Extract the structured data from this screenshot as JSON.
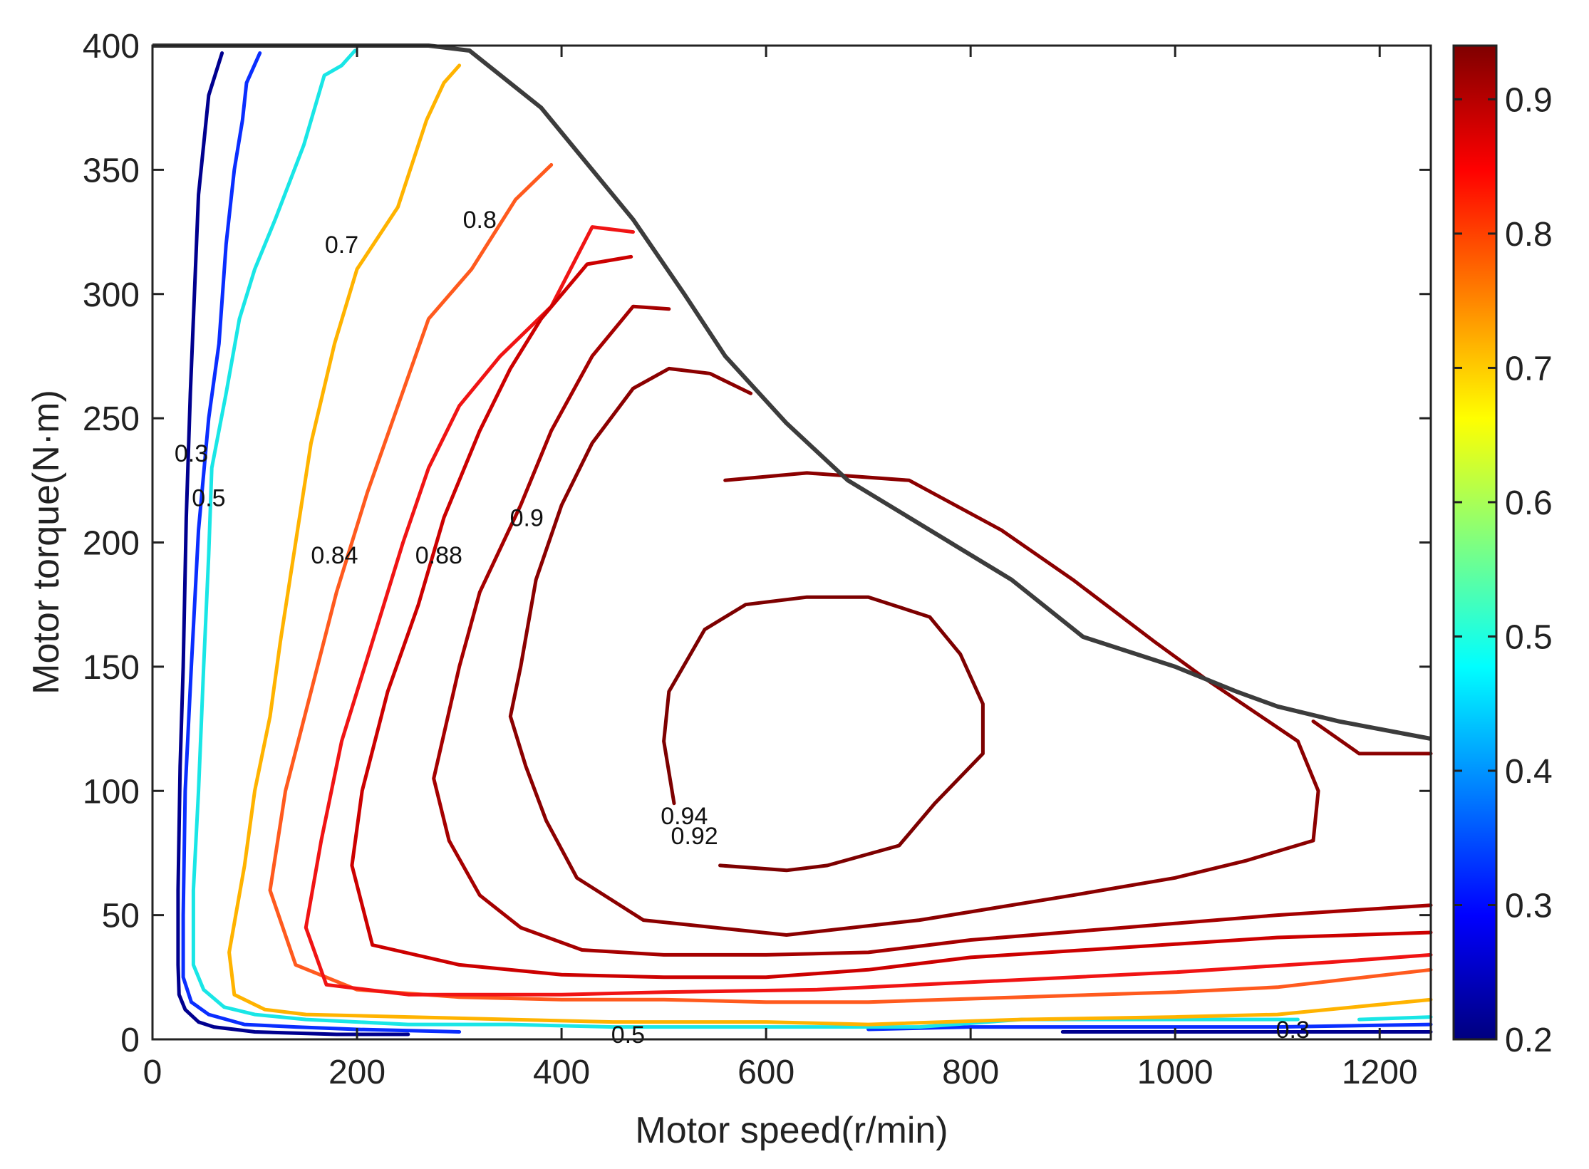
{
  "chart_data": {
    "type": "contour",
    "title": "",
    "xlabel": "Motor speed(r/min)",
    "ylabel": "Motor torque(N·m)",
    "xlim": [
      0,
      1250
    ],
    "ylim": [
      0,
      400
    ],
    "xticks": [
      0,
      200,
      400,
      600,
      800,
      1000,
      1200
    ],
    "yticks": [
      0,
      50,
      100,
      150,
      200,
      250,
      300,
      350,
      400
    ],
    "grid": false,
    "colorbar": {
      "colormap": "jet",
      "range": [
        0.2,
        0.94
      ],
      "ticks": [
        0.2,
        0.3,
        0.4,
        0.5,
        0.6,
        0.7,
        0.8,
        0.9
      ],
      "stops": [
        {
          "v": 0.0,
          "color": "#00007f"
        },
        {
          "v": 0.125,
          "color": "#0000ff"
        },
        {
          "v": 0.375,
          "color": "#00ffff"
        },
        {
          "v": 0.625,
          "color": "#ffff00"
        },
        {
          "v": 0.875,
          "color": "#ff0000"
        },
        {
          "v": 1.0,
          "color": "#7f0000"
        }
      ]
    },
    "boundary": {
      "name": "Max torque curve",
      "color": "#3c3c3c",
      "points": [
        [
          0,
          400
        ],
        [
          270,
          400
        ],
        [
          310,
          398
        ],
        [
          380,
          375
        ],
        [
          470,
          330
        ],
        [
          520,
          300
        ],
        [
          560,
          275
        ],
        [
          620,
          248
        ],
        [
          680,
          225
        ],
        [
          780,
          200
        ],
        [
          840,
          185
        ],
        [
          910,
          162
        ],
        [
          1000,
          150
        ],
        [
          1060,
          140
        ],
        [
          1100,
          134
        ],
        [
          1160,
          128
        ],
        [
          1250,
          121
        ]
      ]
    },
    "series": [
      {
        "name": "0.3 left",
        "level": 0.3,
        "color": "#00008f",
        "label": "0.3",
        "label_at": [
          38,
          236
        ],
        "points": [
          [
            68,
            397
          ],
          [
            55,
            380
          ],
          [
            45,
            340
          ],
          [
            40,
            290
          ],
          [
            37,
            260
          ],
          [
            33,
            210
          ],
          [
            30,
            150
          ],
          [
            27,
            110
          ],
          [
            25,
            60
          ],
          [
            25,
            30
          ],
          [
            26,
            18
          ],
          [
            32,
            12
          ],
          [
            45,
            7
          ],
          [
            60,
            5
          ],
          [
            80,
            4
          ],
          [
            100,
            3
          ],
          [
            180,
            2
          ],
          [
            250,
            2
          ]
        ]
      },
      {
        "name": "0.3 bottom right",
        "level": 0.3,
        "color": "#00008f",
        "label": "0.3",
        "label_at": [
          1115,
          4
        ],
        "points": [
          [
            890,
            3
          ],
          [
            1000,
            3
          ],
          [
            1100,
            3
          ],
          [
            1250,
            3
          ]
        ]
      },
      {
        "name": "0.5 left (blue)",
        "level": 0.5,
        "color": "#0a2eff",
        "points": [
          [
            105,
            397
          ],
          [
            92,
            385
          ],
          [
            88,
            370
          ],
          [
            80,
            350
          ],
          [
            72,
            320
          ],
          [
            65,
            280
          ],
          [
            55,
            250
          ],
          [
            45,
            205
          ],
          [
            38,
            150
          ],
          [
            32,
            100
          ],
          [
            30,
            50
          ],
          [
            30,
            25
          ],
          [
            38,
            15
          ],
          [
            55,
            10
          ],
          [
            90,
            6
          ],
          [
            140,
            5
          ],
          [
            200,
            4
          ],
          [
            300,
            3
          ]
        ]
      },
      {
        "name": "0.5 bottom right (blue)",
        "level": 0.5,
        "color": "#0a2eff",
        "points": [
          [
            700,
            4
          ],
          [
            800,
            5
          ],
          [
            900,
            5
          ],
          [
            1000,
            5
          ],
          [
            1100,
            5
          ],
          [
            1250,
            6
          ]
        ]
      },
      {
        "name": "0.5 left (cyan)",
        "level": 0.5,
        "color": "#19e6e6",
        "label": "0.5",
        "label_at": [
          55,
          218
        ],
        "points": [
          [
            198,
            398
          ],
          [
            185,
            392
          ],
          [
            168,
            388
          ],
          [
            148,
            360
          ],
          [
            120,
            330
          ],
          [
            100,
            310
          ],
          [
            85,
            290
          ],
          [
            72,
            260
          ],
          [
            58,
            230
          ],
          [
            55,
            195
          ],
          [
            50,
            150
          ],
          [
            45,
            100
          ],
          [
            40,
            60
          ],
          [
            40,
            30
          ],
          [
            50,
            20
          ],
          [
            70,
            13
          ],
          [
            100,
            10
          ],
          [
            150,
            8
          ],
          [
            250,
            6
          ],
          [
            350,
            6
          ],
          [
            450,
            5
          ],
          [
            600,
            5
          ],
          [
            750,
            5
          ],
          [
            850,
            8
          ],
          [
            950,
            8
          ],
          [
            1050,
            8
          ],
          [
            1120,
            8
          ]
        ]
      },
      {
        "name": "0.5 bottom right (cyan)",
        "level": 0.5,
        "color": "#19e6e6",
        "label": "0.5",
        "label_at": [
          465,
          2
        ],
        "points": [
          [
            1180,
            8
          ],
          [
            1250,
            9
          ]
        ]
      },
      {
        "name": "0.7",
        "level": 0.7,
        "color": "#ffb300",
        "label": "0.7",
        "label_at": [
          185,
          320
        ],
        "points": [
          [
            300,
            392
          ],
          [
            285,
            385
          ],
          [
            268,
            370
          ],
          [
            240,
            335
          ],
          [
            200,
            310
          ],
          [
            178,
            280
          ],
          [
            155,
            240
          ],
          [
            140,
            200
          ],
          [
            125,
            160
          ],
          [
            115,
            130
          ],
          [
            100,
            100
          ],
          [
            90,
            70
          ],
          [
            75,
            35
          ],
          [
            80,
            18
          ],
          [
            110,
            12
          ],
          [
            150,
            10
          ],
          [
            250,
            9
          ],
          [
            350,
            8
          ],
          [
            450,
            7
          ],
          [
            600,
            7
          ],
          [
            700,
            6
          ],
          [
            850,
            8
          ],
          [
            1000,
            9
          ],
          [
            1100,
            10
          ],
          [
            1250,
            16
          ]
        ]
      },
      {
        "name": "0.8",
        "level": 0.8,
        "color": "#ff5a1e",
        "label": "0.8",
        "label_at": [
          320,
          330
        ],
        "points": [
          [
            390,
            352
          ],
          [
            355,
            338
          ],
          [
            312,
            310
          ],
          [
            270,
            290
          ],
          [
            240,
            255
          ],
          [
            210,
            220
          ],
          [
            180,
            180
          ],
          [
            155,
            140
          ],
          [
            130,
            100
          ],
          [
            115,
            60
          ],
          [
            140,
            30
          ],
          [
            200,
            20
          ],
          [
            300,
            17
          ],
          [
            400,
            16
          ],
          [
            500,
            16
          ],
          [
            600,
            15
          ],
          [
            700,
            15
          ],
          [
            850,
            17
          ],
          [
            1000,
            19
          ],
          [
            1100,
            21
          ],
          [
            1250,
            28
          ]
        ]
      },
      {
        "name": "0.84",
        "level": 0.84,
        "color": "#f01414",
        "label": "0.84",
        "label_at": [
          178,
          195
        ],
        "points": [
          [
            470,
            325
          ],
          [
            430,
            327
          ],
          [
            390,
            295
          ],
          [
            340,
            275
          ],
          [
            300,
            255
          ],
          [
            270,
            230
          ],
          [
            245,
            200
          ],
          [
            215,
            160
          ],
          [
            185,
            120
          ],
          [
            165,
            80
          ],
          [
            150,
            45
          ],
          [
            170,
            22
          ],
          [
            250,
            18
          ],
          [
            400,
            18
          ],
          [
            500,
            19
          ],
          [
            650,
            20
          ],
          [
            800,
            23
          ],
          [
            1000,
            27
          ],
          [
            1150,
            31
          ],
          [
            1250,
            34
          ]
        ]
      },
      {
        "name": "0.88",
        "level": 0.88,
        "color": "#cc0000",
        "label": "0.88",
        "label_at": [
          280,
          195
        ],
        "points": [
          [
            468,
            315
          ],
          [
            425,
            312
          ],
          [
            380,
            290
          ],
          [
            350,
            270
          ],
          [
            320,
            245
          ],
          [
            285,
            210
          ],
          [
            260,
            175
          ],
          [
            230,
            140
          ],
          [
            205,
            100
          ],
          [
            195,
            70
          ],
          [
            215,
            38
          ],
          [
            300,
            30
          ],
          [
            400,
            26
          ],
          [
            500,
            25
          ],
          [
            600,
            25
          ],
          [
            700,
            28
          ],
          [
            800,
            33
          ],
          [
            950,
            37
          ],
          [
            1100,
            41
          ],
          [
            1250,
            43
          ]
        ]
      },
      {
        "name": "0.9",
        "level": 0.9,
        "color": "#a50000",
        "label": "0.9",
        "label_at": [
          366,
          210
        ],
        "points": [
          [
            505,
            294
          ],
          [
            470,
            295
          ],
          [
            430,
            275
          ],
          [
            390,
            245
          ],
          [
            360,
            215
          ],
          [
            320,
            180
          ],
          [
            300,
            150
          ],
          [
            275,
            105
          ],
          [
            290,
            80
          ],
          [
            320,
            58
          ],
          [
            360,
            45
          ],
          [
            420,
            36
          ],
          [
            500,
            34
          ],
          [
            600,
            34
          ],
          [
            700,
            35
          ],
          [
            800,
            40
          ],
          [
            950,
            45
          ],
          [
            1100,
            50
          ],
          [
            1250,
            54
          ]
        ]
      },
      {
        "name": "0.92 outer",
        "level": 0.92,
        "color": "#8b0000",
        "label": "0.92",
        "label_at": [
          530,
          82
        ],
        "points": [
          [
            585,
            260
          ],
          [
            545,
            268
          ],
          [
            505,
            270
          ],
          [
            470,
            262
          ],
          [
            430,
            240
          ],
          [
            400,
            215
          ],
          [
            375,
            185
          ],
          [
            360,
            150
          ],
          [
            350,
            130
          ],
          [
            365,
            110
          ],
          [
            385,
            88
          ],
          [
            415,
            65
          ],
          [
            480,
            48
          ],
          [
            620,
            42
          ],
          [
            750,
            48
          ],
          [
            900,
            58
          ],
          [
            1000,
            65
          ],
          [
            1070,
            72
          ],
          [
            1135,
            80
          ],
          [
            1140,
            100
          ],
          [
            1120,
            120
          ],
          [
            1030,
            145
          ],
          [
            980,
            160
          ],
          [
            900,
            185
          ],
          [
            830,
            205
          ],
          [
            740,
            225
          ],
          [
            640,
            228
          ],
          [
            560,
            225
          ]
        ]
      },
      {
        "name": "0.92 right tail",
        "level": 0.92,
        "color": "#8b0000",
        "points": [
          [
            1135,
            128
          ],
          [
            1180,
            115
          ],
          [
            1250,
            115
          ]
        ]
      },
      {
        "name": "0.94",
        "level": 0.94,
        "color": "#7d0000",
        "label": "0.94",
        "label_at": [
          520,
          90
        ],
        "points": [
          [
            555,
            70
          ],
          [
            620,
            68
          ],
          [
            660,
            70
          ],
          [
            730,
            78
          ],
          [
            765,
            95
          ],
          [
            812,
            115
          ],
          [
            812,
            135
          ],
          [
            790,
            155
          ],
          [
            760,
            170
          ],
          [
            700,
            178
          ],
          [
            640,
            178
          ],
          [
            580,
            175
          ],
          [
            540,
            165
          ],
          [
            505,
            140
          ],
          [
            500,
            120
          ],
          [
            510,
            95
          ]
        ]
      }
    ]
  }
}
